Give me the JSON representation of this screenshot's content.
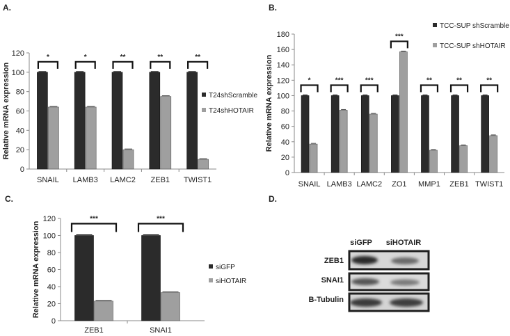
{
  "colors": {
    "dark": "#2b2b2b",
    "light": "#9f9f9f",
    "axis": "#888888"
  },
  "chart_data": [
    {
      "type": "bar",
      "panel": "A.",
      "ylabel": "Relative mRNA expression",
      "ylim": [
        0,
        120
      ],
      "yticks": [
        0,
        20,
        40,
        60,
        80,
        100,
        120
      ],
      "categories": [
        "SNAIL",
        "LAMB3",
        "LAMC2",
        "ZEB1",
        "TWIST1"
      ],
      "series": [
        {
          "name": "T24shScramble",
          "values": [
            100,
            100,
            100,
            100,
            100
          ]
        },
        {
          "name": "T24shHOTAIR",
          "values": [
            64,
            64,
            20,
            75,
            10
          ]
        }
      ],
      "significance": [
        "*",
        "*",
        "**",
        "**",
        "**"
      ],
      "legend_position": "right"
    },
    {
      "type": "bar",
      "panel": "B.",
      "ylabel": "Relative mRNA expression",
      "ylim": [
        0,
        180
      ],
      "yticks": [
        0,
        20,
        40,
        60,
        80,
        100,
        120,
        140,
        160,
        180
      ],
      "categories": [
        "SNAIL",
        "LAMB3",
        "LAMC2",
        "ZO1",
        "MMP1",
        "ZEB1",
        "TWIST1"
      ],
      "series": [
        {
          "name": "TCC-SUP shScramble",
          "values": [
            100,
            100,
            100,
            100,
            100,
            100,
            100
          ]
        },
        {
          "name": "TCC-SUP shHOTAIR",
          "values": [
            37,
            81,
            76,
            157,
            29,
            35,
            48
          ]
        }
      ],
      "significance": [
        "*",
        "***",
        "***",
        "***",
        "**",
        "**",
        "**"
      ],
      "legend_position": "top-right"
    },
    {
      "type": "bar",
      "panel": "C.",
      "ylabel": "Relative mRNA expression",
      "ylim": [
        0,
        120
      ],
      "yticks": [
        0,
        20,
        40,
        60,
        80,
        100,
        120
      ],
      "categories": [
        "ZEB1",
        "SNAI1"
      ],
      "series": [
        {
          "name": "siGFP",
          "values": [
            100,
            100
          ]
        },
        {
          "name": "siHOTAIR",
          "values": [
            23,
            33
          ]
        }
      ],
      "significance": [
        "***",
        "***"
      ],
      "legend_position": "right"
    }
  ],
  "blot": {
    "panel": "D.",
    "lanes": [
      "siGFP",
      "siHOTAIR"
    ],
    "rows": [
      "ZEB1",
      "SNAI1",
      "B-Tubulin"
    ]
  }
}
